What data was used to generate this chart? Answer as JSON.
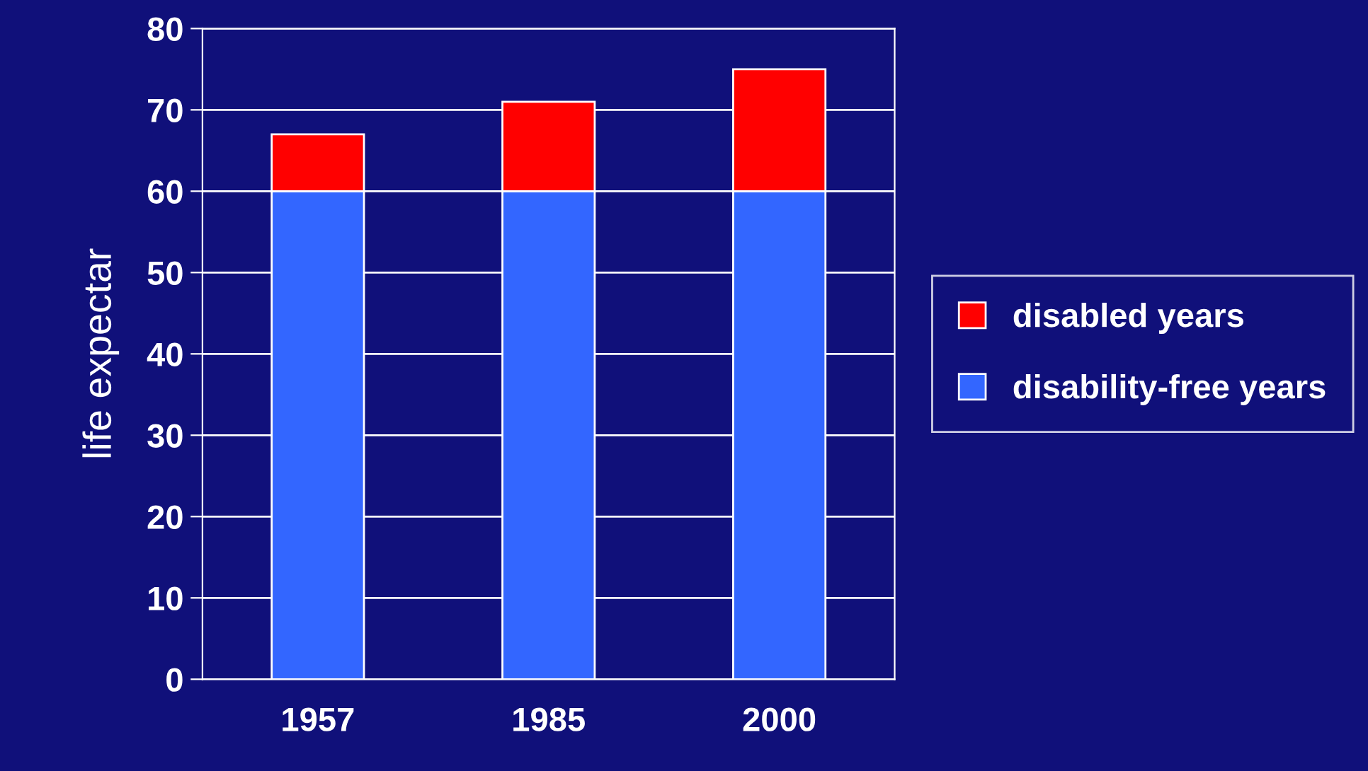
{
  "chart_data": {
    "type": "bar",
    "stacked": true,
    "categories": [
      "1957",
      "1985",
      "2000"
    ],
    "series": [
      {
        "name": "disability-free years",
        "color": "#3366ff",
        "values": [
          60,
          60,
          60
        ]
      },
      {
        "name": "disabled years",
        "color": "#ff0000",
        "values": [
          7,
          11,
          15
        ]
      }
    ],
    "ylabel": "life expectar",
    "ylim": [
      0,
      80
    ],
    "yticks": [
      0,
      10,
      20,
      30,
      40,
      50,
      60,
      70,
      80
    ],
    "grid": "y",
    "legend": "right"
  }
}
